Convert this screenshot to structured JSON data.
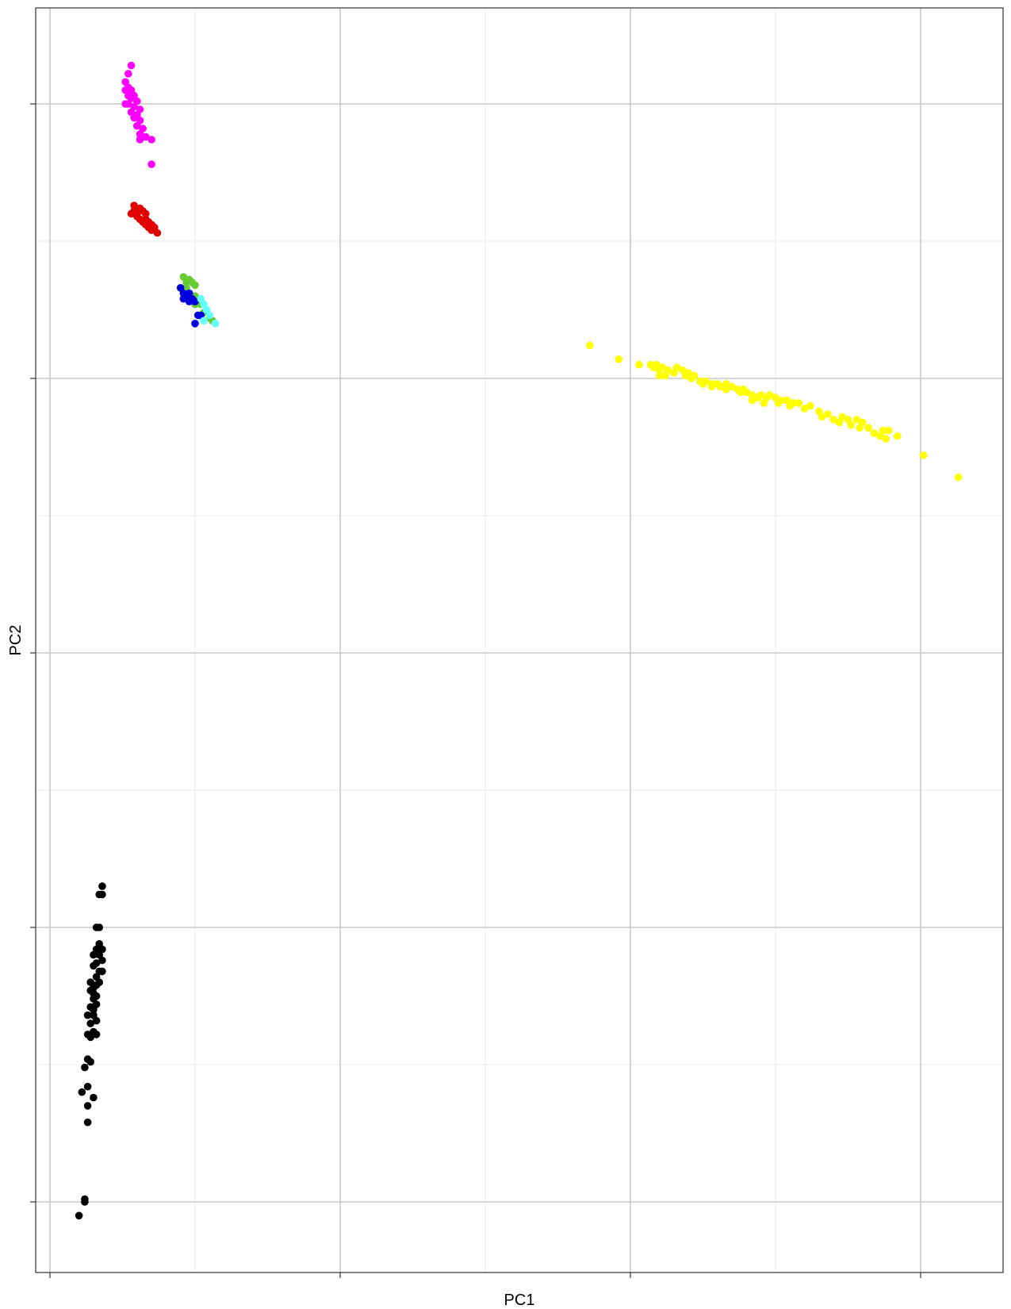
{
  "chart_data": {
    "type": "scatter",
    "title": "",
    "xlabel": "PC1",
    "ylabel": "PC2",
    "xlim": [
      -0.05,
      3.3
    ],
    "ylim": [
      -0.05,
      4.2
    ],
    "grid": true,
    "legend": "none",
    "x_major_ticks": [
      0,
      1,
      2,
      3
    ],
    "y_major_ticks": [
      0,
      1,
      2,
      3,
      4
    ],
    "series": [
      {
        "color": "#FF00FF",
        "points": [
          [
            0.28,
            4.14
          ],
          [
            0.27,
            4.11
          ],
          [
            0.26,
            4.08
          ],
          [
            0.27,
            4.06
          ],
          [
            0.26,
            4.05
          ],
          [
            0.28,
            4.05
          ],
          [
            0.27,
            4.03
          ],
          [
            0.29,
            4.03
          ],
          [
            0.28,
            4.02
          ],
          [
            0.3,
            4.01
          ],
          [
            0.27,
            4.0
          ],
          [
            0.26,
            4.0
          ],
          [
            0.29,
            3.99
          ],
          [
            0.31,
            3.98
          ],
          [
            0.28,
            3.97
          ],
          [
            0.3,
            3.96
          ],
          [
            0.29,
            3.95
          ],
          [
            0.31,
            3.94
          ],
          [
            0.3,
            3.92
          ],
          [
            0.32,
            3.91
          ],
          [
            0.31,
            3.89
          ],
          [
            0.33,
            3.88
          ],
          [
            0.31,
            3.87
          ],
          [
            0.35,
            3.87
          ],
          [
            0.35,
            3.78
          ]
        ]
      },
      {
        "color": "#E00000",
        "points": [
          [
            0.29,
            3.63
          ],
          [
            0.31,
            3.62
          ],
          [
            0.29,
            3.61
          ],
          [
            0.32,
            3.61
          ],
          [
            0.28,
            3.6
          ],
          [
            0.3,
            3.6
          ],
          [
            0.33,
            3.6
          ],
          [
            0.3,
            3.59
          ],
          [
            0.31,
            3.58
          ],
          [
            0.33,
            3.58
          ],
          [
            0.32,
            3.57
          ],
          [
            0.34,
            3.57
          ],
          [
            0.33,
            3.56
          ],
          [
            0.35,
            3.56
          ],
          [
            0.34,
            3.55
          ],
          [
            0.36,
            3.55
          ],
          [
            0.35,
            3.54
          ],
          [
            0.37,
            3.53
          ]
        ]
      },
      {
        "color": "#66CC33",
        "points": [
          [
            0.46,
            3.37
          ],
          [
            0.48,
            3.36
          ],
          [
            0.47,
            3.35
          ],
          [
            0.49,
            3.35
          ],
          [
            0.5,
            3.34
          ],
          [
            0.47,
            3.33
          ],
          [
            0.5,
            3.3
          ],
          [
            0.51,
            3.28
          ],
          [
            0.52,
            3.27
          ],
          [
            0.5,
            3.27
          ],
          [
            0.53,
            3.24
          ],
          [
            0.55,
            3.22
          ],
          [
            0.56,
            3.21
          ]
        ]
      },
      {
        "color": "#0000DD",
        "points": [
          [
            0.45,
            3.33
          ],
          [
            0.46,
            3.31
          ],
          [
            0.47,
            3.3
          ],
          [
            0.48,
            3.31
          ],
          [
            0.46,
            3.29
          ],
          [
            0.48,
            3.28
          ],
          [
            0.49,
            3.29
          ],
          [
            0.5,
            3.28
          ],
          [
            0.51,
            3.23
          ],
          [
            0.52,
            3.23
          ],
          [
            0.5,
            3.2
          ]
        ]
      },
      {
        "color": "#66FFFF",
        "points": [
          [
            0.52,
            3.29
          ],
          [
            0.53,
            3.27
          ],
          [
            0.54,
            3.25
          ],
          [
            0.55,
            3.23
          ],
          [
            0.53,
            3.21
          ],
          [
            0.57,
            3.2
          ]
        ]
      },
      {
        "color": "#FFFF00",
        "points": [
          [
            1.86,
            3.12
          ],
          [
            1.96,
            3.07
          ],
          [
            2.03,
            3.05
          ],
          [
            2.07,
            3.05
          ],
          [
            2.09,
            3.05
          ],
          [
            2.08,
            3.04
          ],
          [
            2.11,
            3.04
          ],
          [
            2.1,
            3.03
          ],
          [
            2.13,
            3.03
          ],
          [
            2.16,
            3.04
          ],
          [
            2.18,
            3.03
          ],
          [
            2.15,
            3.02
          ],
          [
            2.2,
            3.02
          ],
          [
            2.19,
            3.01
          ],
          [
            2.22,
            3.01
          ],
          [
            2.12,
            3.01
          ],
          [
            2.1,
            3.01
          ],
          [
            2.21,
            3.0
          ],
          [
            2.24,
            2.99
          ],
          [
            2.26,
            2.99
          ],
          [
            2.28,
            2.98
          ],
          [
            2.25,
            2.98
          ],
          [
            2.3,
            2.98
          ],
          [
            2.33,
            2.98
          ],
          [
            2.28,
            2.97
          ],
          [
            2.31,
            2.97
          ],
          [
            2.35,
            2.97
          ],
          [
            2.37,
            2.96
          ],
          [
            2.33,
            2.96
          ],
          [
            2.39,
            2.96
          ],
          [
            2.4,
            2.95
          ],
          [
            2.42,
            2.94
          ],
          [
            2.38,
            2.95
          ],
          [
            2.45,
            2.94
          ],
          [
            2.44,
            2.93
          ],
          [
            2.48,
            2.94
          ],
          [
            2.47,
            2.93
          ],
          [
            2.5,
            2.93
          ],
          [
            2.52,
            2.92
          ],
          [
            2.54,
            2.92
          ],
          [
            2.42,
            2.92
          ],
          [
            2.46,
            2.91
          ],
          [
            2.51,
            2.91
          ],
          [
            2.56,
            2.91
          ],
          [
            2.58,
            2.91
          ],
          [
            2.62,
            2.9
          ],
          [
            2.55,
            2.9
          ],
          [
            2.6,
            2.89
          ],
          [
            2.65,
            2.88
          ],
          [
            2.68,
            2.87
          ],
          [
            2.66,
            2.86
          ],
          [
            2.7,
            2.85
          ],
          [
            2.73,
            2.86
          ],
          [
            2.75,
            2.85
          ],
          [
            2.78,
            2.85
          ],
          [
            2.8,
            2.84
          ],
          [
            2.72,
            2.84
          ],
          [
            2.76,
            2.83
          ],
          [
            2.79,
            2.82
          ],
          [
            2.82,
            2.82
          ],
          [
            2.87,
            2.81
          ],
          [
            2.89,
            2.81
          ],
          [
            2.84,
            2.8
          ],
          [
            2.86,
            2.79
          ],
          [
            2.92,
            2.79
          ],
          [
            2.88,
            2.78
          ],
          [
            3.01,
            2.72
          ],
          [
            3.13,
            2.64
          ]
        ]
      },
      {
        "color": "#000000",
        "points": [
          [
            0.18,
            1.15
          ],
          [
            0.17,
            1.12
          ],
          [
            0.18,
            1.12
          ],
          [
            0.16,
            1.0
          ],
          [
            0.17,
            1.0
          ],
          [
            0.17,
            0.94
          ],
          [
            0.18,
            0.92
          ],
          [
            0.16,
            0.92
          ],
          [
            0.17,
            0.9
          ],
          [
            0.15,
            0.9
          ],
          [
            0.18,
            0.88
          ],
          [
            0.16,
            0.87
          ],
          [
            0.15,
            0.86
          ],
          [
            0.17,
            0.84
          ],
          [
            0.18,
            0.84
          ],
          [
            0.16,
            0.82
          ],
          [
            0.14,
            0.8
          ],
          [
            0.16,
            0.79
          ],
          [
            0.15,
            0.78
          ],
          [
            0.17,
            0.8
          ],
          [
            0.14,
            0.77
          ],
          [
            0.15,
            0.76
          ],
          [
            0.16,
            0.75
          ],
          [
            0.15,
            0.74
          ],
          [
            0.16,
            0.72
          ],
          [
            0.15,
            0.71
          ],
          [
            0.14,
            0.71
          ],
          [
            0.15,
            0.7
          ],
          [
            0.13,
            0.68
          ],
          [
            0.15,
            0.68
          ],
          [
            0.16,
            0.66
          ],
          [
            0.14,
            0.65
          ],
          [
            0.15,
            0.62
          ],
          [
            0.13,
            0.61
          ],
          [
            0.16,
            0.61
          ],
          [
            0.14,
            0.6
          ],
          [
            0.13,
            0.52
          ],
          [
            0.14,
            0.51
          ],
          [
            0.12,
            0.49
          ],
          [
            0.13,
            0.42
          ],
          [
            0.11,
            0.4
          ],
          [
            0.15,
            0.38
          ],
          [
            0.13,
            0.35
          ],
          [
            0.13,
            0.29
          ],
          [
            0.12,
            0.01
          ],
          [
            0.12,
            0.0
          ],
          [
            0.1,
            -0.05
          ]
        ]
      }
    ]
  }
}
